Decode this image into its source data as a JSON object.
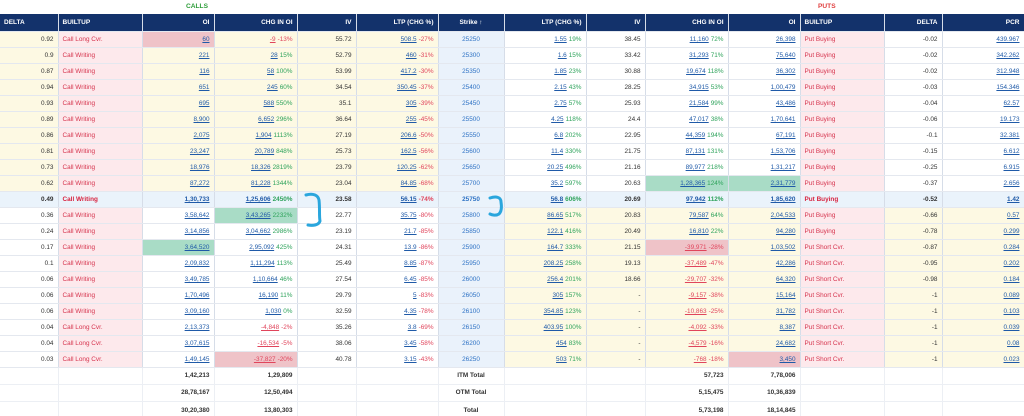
{
  "headers": {
    "calls_label": "CALLS",
    "puts_label": "PUTS",
    "columns": [
      "DELTA",
      "BUILTUP",
      "OI",
      "CHG IN OI",
      "IV",
      "LTP (CHG %)",
      "Strike ↑",
      "LTP (CHG %)",
      "IV",
      "CHG IN OI",
      "OI",
      "BUILTUP",
      "DELTA",
      "PCR"
    ]
  },
  "rows": [
    {
      "strike": "25250",
      "c_delta": "0.92",
      "c_build": "Call Long Cvr.",
      "c_oi": "60",
      "c_chg": "-9",
      "c_chg_pct": "-13%",
      "c_iv": "55.72",
      "c_ltp": "508.5",
      "c_ltp_pct": "-27%",
      "p_ltp": "1.55",
      "p_ltp_pct": "19%",
      "p_iv": "38.45",
      "p_chg": "11,160",
      "p_chg_pct": "72%",
      "p_oi": "26,398",
      "p_build": "Put Buying",
      "p_delta": "-0.02",
      "pcr": "439.967"
    },
    {
      "strike": "25300",
      "c_delta": "0.9",
      "c_build": "Call Writing",
      "c_oi": "221",
      "c_chg": "28",
      "c_chg_pct": "15%",
      "c_iv": "52.79",
      "c_ltp": "460",
      "c_ltp_pct": "-31%",
      "p_ltp": "1.6",
      "p_ltp_pct": "15%",
      "p_iv": "33.42",
      "p_chg": "31,293",
      "p_chg_pct": "71%",
      "p_oi": "75,640",
      "p_build": "Put Buying",
      "p_delta": "-0.02",
      "pcr": "342.262"
    },
    {
      "strike": "25350",
      "c_delta": "0.87",
      "c_build": "Call Writing",
      "c_oi": "116",
      "c_chg": "58",
      "c_chg_pct": "100%",
      "c_iv": "53.99",
      "c_ltp": "417.2",
      "c_ltp_pct": "-30%",
      "p_ltp": "1.85",
      "p_ltp_pct": "23%",
      "p_iv": "30.88",
      "p_chg": "19,674",
      "p_chg_pct": "118%",
      "p_oi": "36,302",
      "p_build": "Put Buying",
      "p_delta": "-0.02",
      "pcr": "312.948"
    },
    {
      "strike": "25400",
      "c_delta": "0.94",
      "c_build": "Call Writing",
      "c_oi": "651",
      "c_chg": "245",
      "c_chg_pct": "60%",
      "c_iv": "34.54",
      "c_ltp": "350.45",
      "c_ltp_pct": "-37%",
      "p_ltp": "2.15",
      "p_ltp_pct": "43%",
      "p_iv": "28.25",
      "p_chg": "34,915",
      "p_chg_pct": "53%",
      "p_oi": "1,00,479",
      "p_build": "Put Buying",
      "p_delta": "-0.03",
      "pcr": "154.346"
    },
    {
      "strike": "25450",
      "c_delta": "0.93",
      "c_build": "Call Writing",
      "c_oi": "695",
      "c_chg": "588",
      "c_chg_pct": "550%",
      "c_iv": "35.1",
      "c_ltp": "305",
      "c_ltp_pct": "-39%",
      "p_ltp": "2.75",
      "p_ltp_pct": "57%",
      "p_iv": "25.93",
      "p_chg": "21,584",
      "p_chg_pct": "99%",
      "p_oi": "43,486",
      "p_build": "Put Buying",
      "p_delta": "-0.04",
      "pcr": "62.57"
    },
    {
      "strike": "25500",
      "c_delta": "0.89",
      "c_build": "Call Writing",
      "c_oi": "8,900",
      "c_chg": "6,652",
      "c_chg_pct": "296%",
      "c_iv": "36.64",
      "c_ltp": "255",
      "c_ltp_pct": "-45%",
      "p_ltp": "4.25",
      "p_ltp_pct": "118%",
      "p_iv": "24.4",
      "p_chg": "47,017",
      "p_chg_pct": "38%",
      "p_oi": "1,70,641",
      "p_build": "Put Buying",
      "p_delta": "-0.06",
      "pcr": "19.173"
    },
    {
      "strike": "25550",
      "c_delta": "0.86",
      "c_build": "Call Writing",
      "c_oi": "2,075",
      "c_chg": "1,904",
      "c_chg_pct": "1113%",
      "c_iv": "27.19",
      "c_ltp": "206.6",
      "c_ltp_pct": "-50%",
      "p_ltp": "6.8",
      "p_ltp_pct": "202%",
      "p_iv": "22.95",
      "p_chg": "44,359",
      "p_chg_pct": "194%",
      "p_oi": "67,191",
      "p_build": "Put Buying",
      "p_delta": "-0.1",
      "pcr": "32.381"
    },
    {
      "strike": "25600",
      "c_delta": "0.81",
      "c_build": "Call Writing",
      "c_oi": "23,247",
      "c_chg": "20,789",
      "c_chg_pct": "848%",
      "c_iv": "25.73",
      "c_ltp": "162.5",
      "c_ltp_pct": "-56%",
      "p_ltp": "11.4",
      "p_ltp_pct": "330%",
      "p_iv": "21.75",
      "p_chg": "87,131",
      "p_chg_pct": "131%",
      "p_oi": "1,53,706",
      "p_build": "Put Buying",
      "p_delta": "-0.15",
      "pcr": "6.612"
    },
    {
      "strike": "25650",
      "c_delta": "0.73",
      "c_build": "Call Writing",
      "c_oi": "18,976",
      "c_chg": "18,326",
      "c_chg_pct": "2819%",
      "c_iv": "23.79",
      "c_ltp": "120.25",
      "c_ltp_pct": "-62%",
      "p_ltp": "20.25",
      "p_ltp_pct": "496%",
      "p_iv": "21.16",
      "p_chg": "89,977",
      "p_chg_pct": "218%",
      "p_oi": "1,31,217",
      "p_build": "Put Buying",
      "p_delta": "-0.25",
      "pcr": "6.915"
    },
    {
      "strike": "25700",
      "c_delta": "0.62",
      "c_build": "Call Writing",
      "c_oi": "87,272",
      "c_chg": "81,228",
      "c_chg_pct": "1344%",
      "c_iv": "23.04",
      "c_ltp": "84.85",
      "c_ltp_pct": "-68%",
      "p_ltp": "35.2",
      "p_ltp_pct": "597%",
      "p_iv": "20.63",
      "p_chg": "1,28,365",
      "p_chg_pct": "124%",
      "p_oi": "2,31,779",
      "p_build": "Put Buying",
      "p_delta": "-0.37",
      "pcr": "2.656"
    },
    {
      "strike": "25750",
      "c_delta": "0.49",
      "c_build": "Call Writing",
      "c_oi": "1,30,733",
      "c_chg": "1,25,606",
      "c_chg_pct": "2450%",
      "c_iv": "23.58",
      "c_ltp": "56.15",
      "c_ltp_pct": "-74%",
      "p_ltp": "56.8",
      "p_ltp_pct": "606%",
      "p_iv": "20.69",
      "p_chg": "97,942",
      "p_chg_pct": "112%",
      "p_oi": "1,85,620",
      "p_build": "Put Buying",
      "p_delta": "-0.52",
      "pcr": "1.42"
    },
    {
      "strike": "25800",
      "c_delta": "0.36",
      "c_build": "Call Writing",
      "c_oi": "3,58,642",
      "c_chg": "3,43,265",
      "c_chg_pct": "2232%",
      "c_iv": "22.77",
      "c_ltp": "35.75",
      "c_ltp_pct": "-80%",
      "p_ltp": "86.65",
      "p_ltp_pct": "517%",
      "p_iv": "20.83",
      "p_chg": "79,587",
      "p_chg_pct": "64%",
      "p_oi": "2,04,533",
      "p_build": "Put Buying",
      "p_delta": "-0.66",
      "pcr": "0.57"
    },
    {
      "strike": "25850",
      "c_delta": "0.24",
      "c_build": "Call Writing",
      "c_oi": "3,14,856",
      "c_chg": "3,04,662",
      "c_chg_pct": "2986%",
      "c_iv": "23.19",
      "c_ltp": "21.7",
      "c_ltp_pct": "-85%",
      "p_ltp": "122.1",
      "p_ltp_pct": "416%",
      "p_iv": "20.49",
      "p_chg": "16,810",
      "p_chg_pct": "22%",
      "p_oi": "94,280",
      "p_build": "Put Buying",
      "p_delta": "-0.78",
      "pcr": "0.299"
    },
    {
      "strike": "25900",
      "c_delta": "0.17",
      "c_build": "Call Writing",
      "c_oi": "3,64,520",
      "c_chg": "2,95,092",
      "c_chg_pct": "425%",
      "c_iv": "24.31",
      "c_ltp": "13.9",
      "c_ltp_pct": "-86%",
      "p_ltp": "164.7",
      "p_ltp_pct": "333%",
      "p_iv": "21.15",
      "p_chg": "-39,971",
      "p_chg_pct": "-28%",
      "p_oi": "1,03,502",
      "p_build": "Put Short Cvr.",
      "p_delta": "-0.87",
      "pcr": "0.284"
    },
    {
      "strike": "25950",
      "c_delta": "0.1",
      "c_build": "Call Writing",
      "c_oi": "2,09,832",
      "c_chg": "1,11,294",
      "c_chg_pct": "113%",
      "c_iv": "25.49",
      "c_ltp": "8.85",
      "c_ltp_pct": "-87%",
      "p_ltp": "208.25",
      "p_ltp_pct": "258%",
      "p_iv": "19.13",
      "p_chg": "-37,489",
      "p_chg_pct": "-47%",
      "p_oi": "42,286",
      "p_build": "Put Short Cvr.",
      "p_delta": "-0.95",
      "pcr": "0.202"
    },
    {
      "strike": "26000",
      "c_delta": "0.06",
      "c_build": "Call Writing",
      "c_oi": "3,49,785",
      "c_chg": "1,10,664",
      "c_chg_pct": "46%",
      "c_iv": "27.54",
      "c_ltp": "6.45",
      "c_ltp_pct": "-85%",
      "p_ltp": "256.4",
      "p_ltp_pct": "201%",
      "p_iv": "18.66",
      "p_chg": "-29,707",
      "p_chg_pct": "-32%",
      "p_oi": "64,320",
      "p_build": "Put Short Cvr.",
      "p_delta": "-0.98",
      "pcr": "0.184"
    },
    {
      "strike": "26050",
      "c_delta": "0.06",
      "c_build": "Call Writing",
      "c_oi": "1,70,496",
      "c_chg": "16,190",
      "c_chg_pct": "11%",
      "c_iv": "29.79",
      "c_ltp": "5",
      "c_ltp_pct": "-83%",
      "p_ltp": "305",
      "p_ltp_pct": "157%",
      "p_iv": "-",
      "p_chg": "-9,157",
      "p_chg_pct": "-38%",
      "p_oi": "15,164",
      "p_build": "Put Short Cvr.",
      "p_delta": "-1",
      "pcr": "0.089"
    },
    {
      "strike": "26100",
      "c_delta": "0.06",
      "c_build": "Call Writing",
      "c_oi": "3,09,160",
      "c_chg": "1,030",
      "c_chg_pct": "0%",
      "c_iv": "32.59",
      "c_ltp": "4.35",
      "c_ltp_pct": "-78%",
      "p_ltp": "354.85",
      "p_ltp_pct": "123%",
      "p_iv": "-",
      "p_chg": "-10,863",
      "p_chg_pct": "-25%",
      "p_oi": "31,782",
      "p_build": "Put Short Cvr.",
      "p_delta": "-1",
      "pcr": "0.103"
    },
    {
      "strike": "26150",
      "c_delta": "0.04",
      "c_build": "Call Long Cvr.",
      "c_oi": "2,13,373",
      "c_chg": "-4,848",
      "c_chg_pct": "-2%",
      "c_iv": "35.26",
      "c_ltp": "3.8",
      "c_ltp_pct": "-69%",
      "p_ltp": "403.95",
      "p_ltp_pct": "100%",
      "p_iv": "-",
      "p_chg": "-4,092",
      "p_chg_pct": "-33%",
      "p_oi": "8,387",
      "p_build": "Put Short Cvr.",
      "p_delta": "-1",
      "pcr": "0.039"
    },
    {
      "strike": "26200",
      "c_delta": "0.04",
      "c_build": "Call Long Cvr.",
      "c_oi": "3,07,615",
      "c_chg": "-16,534",
      "c_chg_pct": "-5%",
      "c_iv": "38.06",
      "c_ltp": "3.45",
      "c_ltp_pct": "-58%",
      "p_ltp": "454",
      "p_ltp_pct": "83%",
      "p_iv": "-",
      "p_chg": "-4,579",
      "p_chg_pct": "-16%",
      "p_oi": "24,682",
      "p_build": "Put Short Cvr.",
      "p_delta": "-1",
      "pcr": "0.08"
    },
    {
      "strike": "26250",
      "c_delta": "0.03",
      "c_build": "Call Long Cvr.",
      "c_oi": "1,49,145",
      "c_chg": "-37,827",
      "c_chg_pct": "-20%",
      "c_iv": "40.78",
      "c_ltp": "3.15",
      "c_ltp_pct": "-43%",
      "p_ltp": "503",
      "p_ltp_pct": "71%",
      "p_iv": "-",
      "p_chg": "-768",
      "p_chg_pct": "-18%",
      "p_oi": "3,450",
      "p_build": "Put Short Cvr.",
      "p_delta": "-1",
      "pcr": "0.023"
    }
  ],
  "summary": [
    {
      "c_oi": "1,42,213",
      "c_chg": "1,29,809",
      "label": "ITM Total",
      "p_chg": "57,723",
      "p_oi": "7,78,006"
    },
    {
      "c_oi": "28,78,167",
      "c_chg": "12,50,494",
      "label": "OTM Total",
      "p_chg": "5,15,475",
      "p_oi": "10,36,839"
    },
    {
      "c_oi": "30,20,380",
      "c_chg": "13,80,303",
      "label": "Total",
      "p_chg": "5,73,198",
      "p_oi": "18,14,845"
    }
  ],
  "colors": {
    "header_bg": "#13326b",
    "calls_title": "#2e9d3a",
    "puts_title": "#e04040",
    "positive": "#2fa35c",
    "negative": "#e0455c",
    "annotation": "#2aa6dd"
  }
}
